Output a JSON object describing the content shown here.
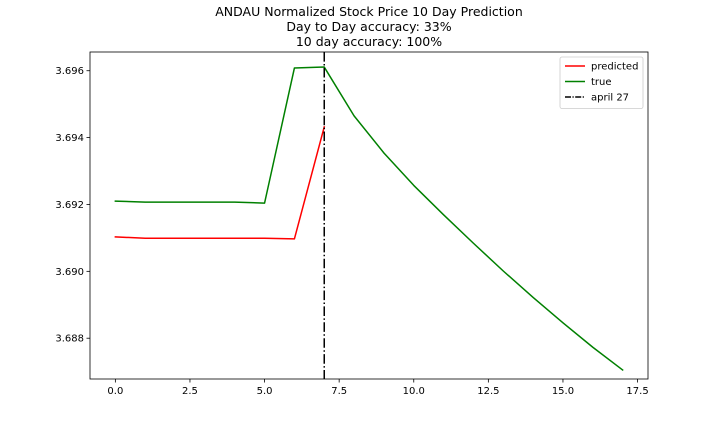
{
  "chart_data": {
    "type": "line",
    "title": "ANDAU Normalized Stock Price 10 Day Prediction",
    "subtitle_lines": [
      "Day to Day accuracy: 33%",
      "10 day accuracy: 100%"
    ],
    "xlabel": "",
    "ylabel": "",
    "xlim": [
      -0.85,
      17.85
    ],
    "ylim": [
      3.68678,
      3.69656
    ],
    "x_ticks": [
      0.0,
      2.5,
      5.0,
      7.5,
      10.0,
      12.5,
      15.0,
      17.5
    ],
    "x_tick_labels": [
      "0.0",
      "2.5",
      "5.0",
      "7.5",
      "10.0",
      "12.5",
      "15.0",
      "17.5"
    ],
    "y_ticks": [
      3.688,
      3.69,
      3.692,
      3.694,
      3.696
    ],
    "y_tick_labels": [
      "3.688",
      "3.690",
      "3.692",
      "3.694",
      "3.696"
    ],
    "grid": false,
    "legend_position": "top-right",
    "series": [
      {
        "name": "predicted",
        "color": "#ff0000",
        "style": "solid",
        "x": [
          0,
          1,
          2,
          3,
          4,
          5,
          6,
          7
        ],
        "y": [
          3.69103,
          3.69099,
          3.69099,
          3.69099,
          3.69099,
          3.69099,
          3.69097,
          3.69432
        ]
      },
      {
        "name": "true",
        "color": "#008000",
        "style": "solid",
        "x": [
          0,
          1,
          2,
          3,
          4,
          5,
          6,
          7,
          8,
          9,
          10,
          11,
          12,
          13,
          14,
          15,
          16,
          17
        ],
        "y": [
          3.6921,
          3.69207,
          3.69207,
          3.69207,
          3.69207,
          3.69204,
          3.69608,
          3.69611,
          3.69465,
          3.69354,
          3.69257,
          3.69169,
          3.69084,
          3.69001,
          3.68922,
          3.68846,
          3.68773,
          3.68705
        ]
      }
    ],
    "vline": {
      "name": "april 27",
      "x": 7,
      "color": "#000000",
      "style": "dashdot"
    }
  }
}
